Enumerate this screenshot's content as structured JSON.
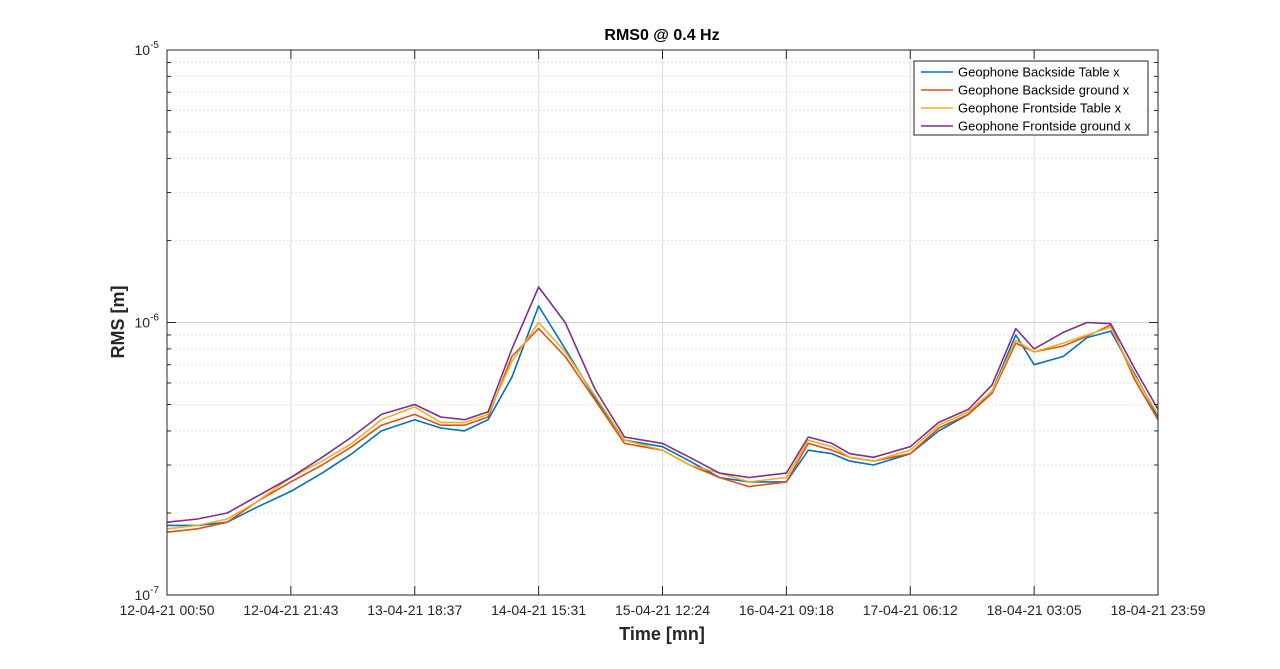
{
  "chart_data": {
    "type": "line",
    "title": "RMS0 @ 0.4 Hz",
    "xlabel": "Time [mn]",
    "ylabel": "RMS [m]",
    "y_scale": "log",
    "ylim": [
      1e-07,
      1e-05
    ],
    "y_ticks": [
      {
        "value": 1e-07,
        "base": "10",
        "exp": "-7"
      },
      {
        "value": 1e-06,
        "base": "10",
        "exp": "-6"
      },
      {
        "value": 1e-05,
        "base": "10",
        "exp": "-5"
      }
    ],
    "x_ticks": [
      "12-04-21 00:50",
      "12-04-21 21:43",
      "13-04-21 18:37",
      "14-04-21 15:31",
      "15-04-21 12:24",
      "16-04-21 09:18",
      "17-04-21 06:12",
      "18-04-21 03:05",
      "18-04-21 23:59"
    ],
    "grid": true,
    "minor_grid": true,
    "legend_position": "top-right",
    "x": [
      "12-04-21 00:50",
      "12-04-21 06:00",
      "12-04-21 11:00",
      "12-04-21 16:00",
      "12-04-21 21:43",
      "13-04-21 03:00",
      "13-04-21 08:00",
      "13-04-21 13:00",
      "13-04-21 18:37",
      "13-04-21 23:00",
      "14-04-21 03:00",
      "14-04-21 07:00",
      "14-04-21 11:00",
      "14-04-21 15:31",
      "14-04-21 20:00",
      "15-04-21 01:00",
      "15-04-21 06:00",
      "15-04-21 12:24",
      "15-04-21 17:00",
      "15-04-21 22:00",
      "16-04-21 03:00",
      "16-04-21 09:18",
      "16-04-21 13:00",
      "16-04-21 17:00",
      "16-04-21 20:00",
      "17-04-21 00:00",
      "17-04-21 06:12",
      "17-04-21 11:00",
      "17-04-21 16:00",
      "17-04-21 20:00",
      "18-04-21 00:00",
      "18-04-21 03:05",
      "18-04-21 08:00",
      "18-04-21 12:00",
      "18-04-21 16:00",
      "18-04-21 20:00",
      "18-04-21 23:59"
    ],
    "series": [
      {
        "name": "Geophone Backside Table x",
        "color": "#0072BD",
        "values": [
          1.8e-07,
          1.8e-07,
          1.85e-07,
          2.1e-07,
          2.4e-07,
          2.8e-07,
          3.3e-07,
          4e-07,
          4.4e-07,
          4.1e-07,
          4e-07,
          4.4e-07,
          6.3e-07,
          1.15e-06,
          8e-07,
          5.3e-07,
          3.7e-07,
          3.5e-07,
          3.1e-07,
          2.7e-07,
          2.6e-07,
          2.6e-07,
          3.4e-07,
          3.3e-07,
          3.1e-07,
          3e-07,
          3.3e-07,
          4e-07,
          4.6e-07,
          5.6e-07,
          9e-07,
          7e-07,
          7.5e-07,
          8.8e-07,
          9.3e-07,
          6.5e-07,
          4.5e-07
        ]
      },
      {
        "name": "Geophone Backside ground x",
        "color": "#D95319",
        "values": [
          1.7e-07,
          1.75e-07,
          1.85e-07,
          2.2e-07,
          2.6e-07,
          3e-07,
          3.5e-07,
          4.2e-07,
          4.6e-07,
          4.2e-07,
          4.2e-07,
          4.5e-07,
          7.5e-07,
          9.5e-07,
          7.5e-07,
          5.2e-07,
          3.6e-07,
          3.4e-07,
          3e-07,
          2.7e-07,
          2.5e-07,
          2.6e-07,
          3.6e-07,
          3.4e-07,
          3.2e-07,
          3.1e-07,
          3.3e-07,
          4.1e-07,
          4.6e-07,
          5.5e-07,
          8.4e-07,
          7.8e-07,
          8.2e-07,
          8.9e-07,
          9.8e-07,
          6.2e-07,
          4.4e-07
        ]
      },
      {
        "name": "Geophone Frontside Table x",
        "color": "#EDB120",
        "values": [
          1.75e-07,
          1.8e-07,
          1.9e-07,
          2.2e-07,
          2.7e-07,
          3.1e-07,
          3.6e-07,
          4.4e-07,
          4.9e-07,
          4.3e-07,
          4.3e-07,
          4.6e-07,
          7.2e-07,
          1e-06,
          7.8e-07,
          5.4e-07,
          3.7e-07,
          3.4e-07,
          3e-07,
          2.8e-07,
          2.6e-07,
          2.7e-07,
          3.7e-07,
          3.5e-07,
          3.2e-07,
          3.1e-07,
          3.4e-07,
          4.2e-07,
          4.7e-07,
          5.6e-07,
          8.6e-07,
          7.8e-07,
          8.4e-07,
          9e-07,
          9.6e-07,
          6.4e-07,
          4.6e-07
        ]
      },
      {
        "name": "Geophone Frontside ground x",
        "color": "#7E2F8E",
        "values": [
          1.85e-07,
          1.9e-07,
          2e-07,
          2.3e-07,
          2.7e-07,
          3.2e-07,
          3.8e-07,
          4.6e-07,
          5e-07,
          4.5e-07,
          4.4e-07,
          4.7e-07,
          8e-07,
          1.35e-06,
          1e-06,
          5.7e-07,
          3.8e-07,
          3.6e-07,
          3.2e-07,
          2.8e-07,
          2.7e-07,
          2.8e-07,
          3.8e-07,
          3.6e-07,
          3.3e-07,
          3.2e-07,
          3.5e-07,
          4.3e-07,
          4.8e-07,
          5.9e-07,
          9.5e-07,
          8e-07,
          9.2e-07,
          1e-06,
          9.9e-07,
          6.8e-07,
          4.8e-07
        ]
      }
    ]
  }
}
